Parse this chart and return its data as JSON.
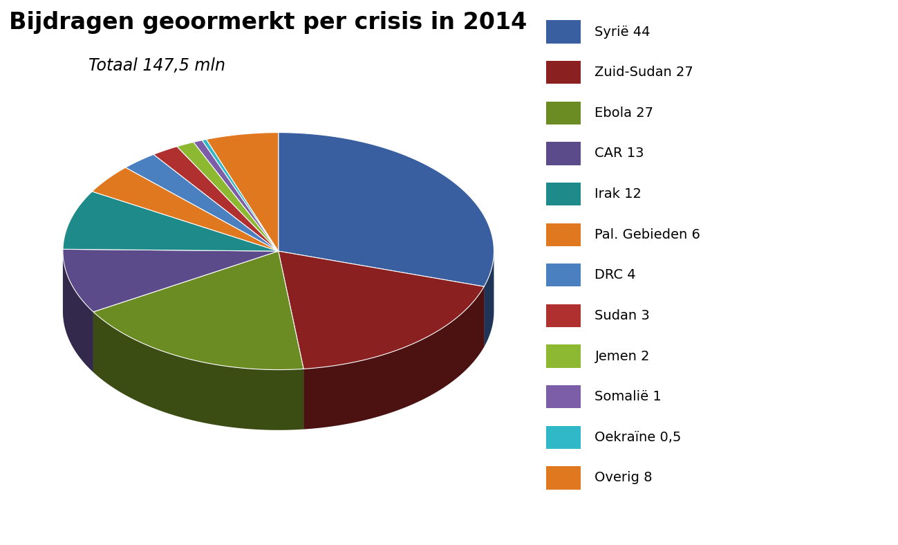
{
  "title": "Bijdragen geoormerkt per crisis in 2014",
  "subtitle": "Totaal 147,5 mln",
  "labels": [
    "Syrië 44",
    "Zuid-Sudan 27",
    "Ebola 27",
    "CAR 13",
    "Irak 12",
    "Pal. Gebieden 6",
    "DRC 4",
    "Sudan 3",
    "Jemen 2",
    "Somalië 1",
    "Oekraïne 0,5",
    "Overig 8"
  ],
  "values": [
    44,
    27,
    27,
    13,
    12,
    6,
    4,
    3,
    2,
    1,
    0.5,
    8
  ],
  "colors": [
    "#3a5fa0",
    "#8b2020",
    "#6b8c23",
    "#5c4b8a",
    "#1e8a8a",
    "#e07820",
    "#4a80c0",
    "#b03030",
    "#8cb832",
    "#7b5ea7",
    "#30b8c8",
    "#e07820"
  ],
  "background_color": "#ffffff",
  "title_fontsize": 24,
  "subtitle_fontsize": 17,
  "legend_fontsize": 14
}
